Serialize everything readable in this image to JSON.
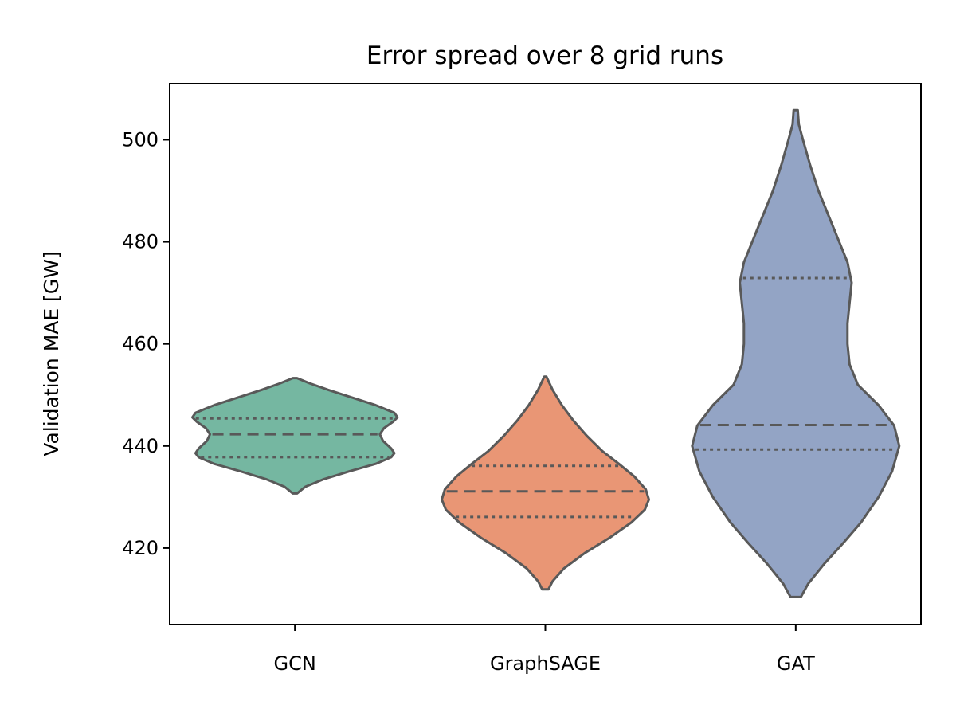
{
  "chart_data": {
    "type": "violin",
    "title": "Error spread over 8 grid runs",
    "xlabel": "",
    "ylabel": "Validation MAE [GW]",
    "ylim": [
      405,
      511
    ],
    "yticks": [
      420,
      440,
      460,
      480,
      500
    ],
    "categories": [
      "GCN",
      "GraphSAGE",
      "GAT"
    ],
    "grid": false,
    "legend": "none",
    "colors": [
      "#75b7a1",
      "#e99675",
      "#93a4c5"
    ],
    "edge_color": "#595959",
    "series": [
      {
        "category": "GCN",
        "quartiles": {
          "q1": 437.8,
          "median": 442.3,
          "q3": 445.4
        },
        "range": [
          430.7,
          453.3
        ],
        "profile": [
          [
            430.7,
            0.02
          ],
          [
            432,
            0.1
          ],
          [
            433.5,
            0.28
          ],
          [
            435,
            0.52
          ],
          [
            436.5,
            0.78
          ],
          [
            437.8,
            0.93
          ],
          [
            438.6,
            0.96
          ],
          [
            439.5,
            0.93
          ],
          [
            441,
            0.85
          ],
          [
            442.3,
            0.82
          ],
          [
            443.5,
            0.86
          ],
          [
            444.8,
            0.95
          ],
          [
            445.6,
            0.99
          ],
          [
            446.5,
            0.96
          ],
          [
            448,
            0.78
          ],
          [
            449.5,
            0.55
          ],
          [
            451,
            0.32
          ],
          [
            452.3,
            0.14
          ],
          [
            453.3,
            0.02
          ]
        ]
      },
      {
        "category": "GraphSAGE",
        "quartiles": {
          "q1": 426.1,
          "median": 431.1,
          "q3": 436.1
        },
        "range": [
          411.9,
          453.6
        ],
        "profile": [
          [
            411.9,
            0.03
          ],
          [
            413.5,
            0.07
          ],
          [
            416,
            0.18
          ],
          [
            419,
            0.38
          ],
          [
            422,
            0.62
          ],
          [
            425,
            0.83
          ],
          [
            427.5,
            0.96
          ],
          [
            429.5,
            1.0
          ],
          [
            431.5,
            0.97
          ],
          [
            434,
            0.86
          ],
          [
            436.5,
            0.71
          ],
          [
            439,
            0.55
          ],
          [
            442,
            0.4
          ],
          [
            445,
            0.27
          ],
          [
            448,
            0.16
          ],
          [
            451,
            0.07
          ],
          [
            453.6,
            0.01
          ]
        ]
      },
      {
        "category": "GAT",
        "quartiles": {
          "q1": 439.3,
          "median": 444.1,
          "q3": 472.9
        },
        "range": [
          410.4,
          505.8
        ],
        "profile": [
          [
            410.4,
            0.05
          ],
          [
            413,
            0.12
          ],
          [
            417,
            0.28
          ],
          [
            421,
            0.46
          ],
          [
            425,
            0.63
          ],
          [
            430,
            0.8
          ],
          [
            435,
            0.93
          ],
          [
            440,
            1.0
          ],
          [
            444,
            0.95
          ],
          [
            448,
            0.8
          ],
          [
            452,
            0.6
          ],
          [
            456,
            0.52
          ],
          [
            460,
            0.5
          ],
          [
            464,
            0.5
          ],
          [
            468,
            0.52
          ],
          [
            472,
            0.54
          ],
          [
            476,
            0.5
          ],
          [
            480,
            0.42
          ],
          [
            485,
            0.32
          ],
          [
            490,
            0.22
          ],
          [
            495,
            0.14
          ],
          [
            500,
            0.07
          ],
          [
            503,
            0.03
          ],
          [
            505.8,
            0.02
          ]
        ]
      }
    ]
  }
}
